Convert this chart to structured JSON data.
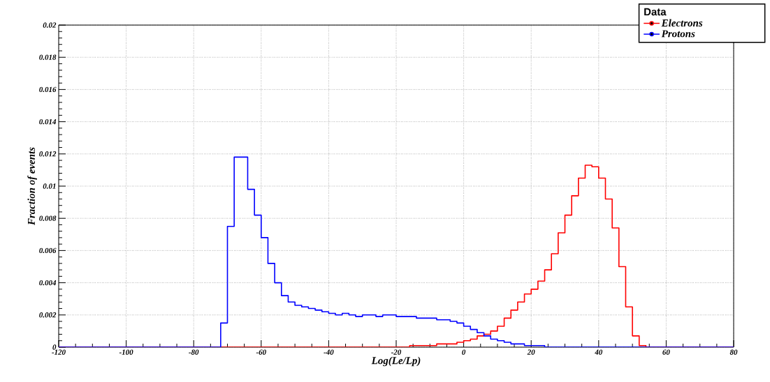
{
  "chart_data": {
    "type": "histogram",
    "xlabel": "Log(Le/Lp)",
    "ylabel": "Fraction of events",
    "legend_title": "Data",
    "bins": [
      -120,
      -118,
      -116,
      -114,
      -112,
      -110,
      -108,
      -106,
      -104,
      -102,
      -100,
      -98,
      -96,
      -94,
      -92,
      -90,
      -88,
      -86,
      -84,
      -82,
      -80,
      -78,
      -76,
      -74,
      -72,
      -70,
      -68,
      -66,
      -64,
      -62,
      -60,
      -58,
      -56,
      -54,
      -52,
      -50,
      -48,
      -46,
      -44,
      -42,
      -40,
      -38,
      -36,
      -34,
      -32,
      -30,
      -28,
      -26,
      -24,
      -22,
      -20,
      -18,
      -16,
      -14,
      -12,
      -10,
      -8,
      -6,
      -4,
      -2,
      0,
      2,
      4,
      6,
      8,
      10,
      12,
      14,
      16,
      18,
      20,
      22,
      24,
      26,
      28,
      30,
      32,
      34,
      36,
      38,
      40,
      42,
      44,
      46,
      48,
      50,
      52,
      54,
      56,
      58,
      60,
      62,
      64,
      66,
      68,
      70,
      72,
      74,
      76,
      78,
      80
    ],
    "series": [
      {
        "name": "Electrons",
        "color": "#ff0000",
        "values": [
          0,
          0,
          0,
          0,
          0,
          0,
          0,
          0,
          0,
          0,
          0,
          0,
          0,
          0,
          0,
          0,
          0,
          0,
          0,
          0,
          0,
          0,
          0,
          0,
          0,
          0,
          0,
          0,
          0,
          0,
          0,
          0,
          0,
          0,
          0,
          0,
          0,
          0,
          0,
          0,
          0,
          0,
          0,
          0,
          0,
          0,
          0,
          0,
          0,
          0,
          0,
          0,
          0.0001,
          0.0001,
          0.0001,
          0.0001,
          0.0002,
          0.0002,
          0.0002,
          0.0003,
          0.0004,
          0.0005,
          0.0007,
          0.0008,
          0.001,
          0.0013,
          0.0018,
          0.0023,
          0.0028,
          0.0033,
          0.0036,
          0.0041,
          0.0048,
          0.0058,
          0.0071,
          0.0082,
          0.0094,
          0.0105,
          0.0113,
          0.0112,
          0.0105,
          0.0092,
          0.0074,
          0.005,
          0.0025,
          0.0007,
          0.0001,
          0,
          0,
          0,
          0,
          0,
          0,
          0,
          0,
          0,
          0,
          0,
          0,
          0
        ]
      },
      {
        "name": "Protons",
        "color": "#0000ff",
        "values": [
          0,
          0,
          0,
          0,
          0,
          0,
          0,
          0,
          0,
          0,
          0,
          0,
          0,
          0,
          0,
          0,
          0,
          0,
          0,
          0,
          0,
          0,
          0,
          0,
          0.0015,
          0.0075,
          0.0118,
          0.0118,
          0.0098,
          0.0082,
          0.0068,
          0.0052,
          0.004,
          0.0032,
          0.0028,
          0.0026,
          0.0025,
          0.0024,
          0.0023,
          0.0022,
          0.0021,
          0.002,
          0.0021,
          0.002,
          0.0019,
          0.002,
          0.002,
          0.0019,
          0.002,
          0.002,
          0.0019,
          0.0019,
          0.0019,
          0.0018,
          0.0018,
          0.0018,
          0.0017,
          0.0017,
          0.0016,
          0.0015,
          0.0013,
          0.0011,
          0.0009,
          0.0007,
          0.0005,
          0.0004,
          0.0003,
          0.0002,
          0.0002,
          0.0001,
          0.0001,
          0.0001,
          0,
          0,
          0,
          0,
          0,
          0,
          0,
          0,
          0,
          0,
          0,
          0,
          0,
          0,
          0,
          0,
          0,
          0,
          0,
          0,
          0,
          0,
          0,
          0,
          0,
          0,
          0,
          0
        ]
      }
    ],
    "xlim": [
      -120,
      80
    ],
    "xticks": [
      -120,
      -100,
      -80,
      -60,
      -40,
      -20,
      0,
      20,
      40,
      60,
      80
    ],
    "ylim": [
      0,
      0.02
    ],
    "yticks": [
      0,
      0.002,
      0.004,
      0.006,
      0.008,
      0.01,
      0.012,
      0.014,
      0.016,
      0.018,
      0.02
    ],
    "grid": true,
    "legend": "top right",
    "marker": "circle"
  }
}
